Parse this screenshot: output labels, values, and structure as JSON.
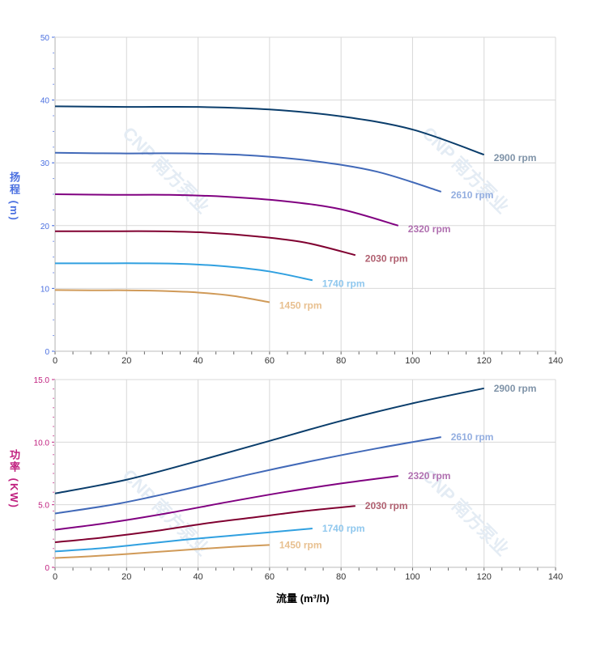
{
  "chart_data": [
    {
      "type": "line",
      "ylabel": "扬程 (m)",
      "xlim": [
        0,
        140
      ],
      "ylim": [
        0,
        50
      ],
      "xticks": [
        "0",
        "20",
        "40",
        "60",
        "80",
        "100",
        "120",
        "140"
      ],
      "yticks": [
        "0",
        "10",
        "20",
        "30",
        "40",
        "50"
      ],
      "grid": true,
      "axis_color": "#4a6fe0",
      "series": [
        {
          "name": "2900 rpm",
          "color": "#0a3d6b",
          "label_color": "#7f93a8",
          "x": [
            0,
            20,
            40,
            60,
            80,
            100,
            120
          ],
          "y": [
            39,
            38.9,
            38.9,
            38.5,
            37.4,
            35.3,
            31.3
          ]
        },
        {
          "name": "2610 rpm",
          "color": "#4169b8",
          "label_color": "#93aee0",
          "x": [
            0,
            18,
            36,
            54,
            72,
            90,
            108
          ],
          "y": [
            31.6,
            31.5,
            31.5,
            31.2,
            30.3,
            28.6,
            25.4
          ]
        },
        {
          "name": "2320 rpm",
          "color": "#800080",
          "label_color": "#b070b0",
          "x": [
            0,
            16,
            32,
            48,
            64,
            80,
            96
          ],
          "y": [
            25.0,
            24.9,
            24.9,
            24.6,
            23.9,
            22.6,
            20.0
          ]
        },
        {
          "name": "2030 rpm",
          "color": "#800030",
          "label_color": "#b06070",
          "x": [
            0,
            14,
            28,
            42,
            56,
            70,
            84
          ],
          "y": [
            19.1,
            19.1,
            19.1,
            18.9,
            18.3,
            17.3,
            15.3
          ]
        },
        {
          "name": "1740 rpm",
          "color": "#30a0e0",
          "label_color": "#90c8ee",
          "x": [
            0,
            12,
            24,
            36,
            48,
            60,
            72
          ],
          "y": [
            14.0,
            14.0,
            14.0,
            13.9,
            13.5,
            12.7,
            11.3
          ]
        },
        {
          "name": "1450 rpm",
          "color": "#d09a58",
          "label_color": "#e8c090",
          "x": [
            0,
            10,
            20,
            30,
            40,
            50,
            60
          ],
          "y": [
            9.75,
            9.7,
            9.7,
            9.6,
            9.35,
            8.8,
            7.8
          ]
        }
      ]
    },
    {
      "type": "line",
      "ylabel": "功率 (KW)",
      "xlabel": "流量 (m³/h)",
      "xlim": [
        0,
        140
      ],
      "ylim": [
        0,
        15
      ],
      "xticks": [
        "0",
        "20",
        "40",
        "60",
        "80",
        "100",
        "120",
        "140"
      ],
      "yticks": [
        "0",
        "5.0",
        "10.0",
        "15.0"
      ],
      "grid": true,
      "axis_color": "#c0207f",
      "series": [
        {
          "name": "2900 rpm",
          "color": "#0a3d6b",
          "label_color": "#7f93a8",
          "x": [
            0,
            20,
            40,
            60,
            80,
            100,
            120
          ],
          "y": [
            5.9,
            7.0,
            8.5,
            10.1,
            11.7,
            13.1,
            14.3
          ]
        },
        {
          "name": "2610 rpm",
          "color": "#4169b8",
          "label_color": "#93aee0",
          "x": [
            0,
            18,
            36,
            54,
            72,
            90,
            108
          ],
          "y": [
            4.3,
            5.1,
            6.2,
            7.4,
            8.5,
            9.5,
            10.4
          ]
        },
        {
          "name": "2320 rpm",
          "color": "#800080",
          "label_color": "#b070b0",
          "x": [
            0,
            16,
            32,
            48,
            64,
            80,
            96
          ],
          "y": [
            3.0,
            3.6,
            4.35,
            5.2,
            6.0,
            6.7,
            7.3
          ]
        },
        {
          "name": "2030 rpm",
          "color": "#800030",
          "label_color": "#b06070",
          "x": [
            0,
            14,
            28,
            42,
            56,
            70,
            84
          ],
          "y": [
            2.0,
            2.4,
            2.9,
            3.5,
            4.0,
            4.5,
            4.9
          ]
        },
        {
          "name": "1740 rpm",
          "color": "#30a0e0",
          "label_color": "#90c8ee",
          "x": [
            0,
            12,
            24,
            36,
            48,
            60,
            72
          ],
          "y": [
            1.27,
            1.5,
            1.84,
            2.2,
            2.5,
            2.8,
            3.1
          ]
        },
        {
          "name": "1450 rpm",
          "color": "#d09a58",
          "label_color": "#e8c090",
          "x": [
            0,
            10,
            20,
            30,
            40,
            50,
            60
          ],
          "y": [
            0.74,
            0.88,
            1.06,
            1.26,
            1.46,
            1.64,
            1.79
          ]
        }
      ]
    }
  ],
  "watermark": "CNP 南方泵业"
}
